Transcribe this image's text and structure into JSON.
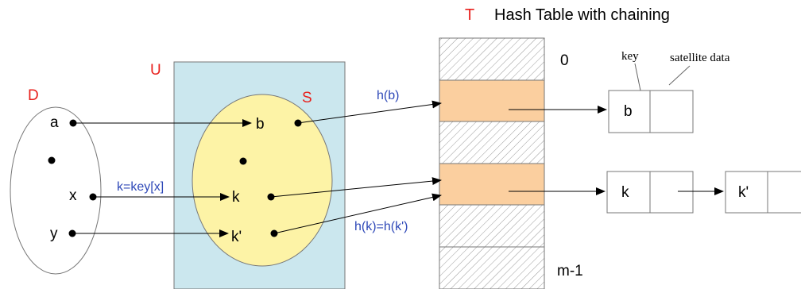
{
  "title": {
    "letter": "T",
    "text": "Hash Table with chaining"
  },
  "sets": {
    "D": {
      "label": "D",
      "elements": [
        "a",
        "x",
        "y"
      ]
    },
    "U": {
      "label": "U"
    },
    "S": {
      "label": "S",
      "elements": [
        "b",
        "k",
        "k'"
      ]
    }
  },
  "mapping_label": "k=key[x]",
  "hash_labels": {
    "hb": "h(b)",
    "hk": "h(k)=h(k')"
  },
  "table": {
    "first_index": "0",
    "last_index": "m-1"
  },
  "node_labels": {
    "key": "key",
    "satellite": "satellite data"
  },
  "chain1": [
    "b"
  ],
  "chain2": [
    "k",
    "k'"
  ],
  "colors": {
    "universe_fill": "#cbe7ee",
    "subset_fill": "#fdf3a6",
    "slot_fill": "#fbcf9f",
    "accent_red": "#e8201c",
    "label_blue": "#2f49b8"
  }
}
